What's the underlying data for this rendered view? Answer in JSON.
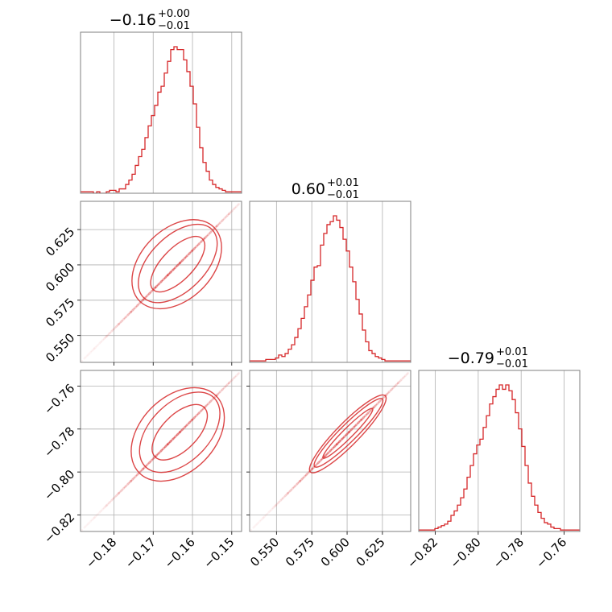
{
  "chart_data": {
    "type": "corner",
    "grid": true,
    "colors": {
      "line": "#d62728",
      "frame": "#7f7f7f",
      "grid": "#b0b0b0"
    },
    "parameters": [
      {
        "title": {
          "median": "−0.16",
          "plus": "+0.00",
          "minus": "−0.01"
        },
        "range": [
          -0.1885,
          -0.1475
        ],
        "ticks": [
          {
            "value": -0.18,
            "label": "−0.18"
          },
          {
            "value": -0.17,
            "label": "−0.17"
          },
          {
            "value": -0.16,
            "label": "−0.16"
          },
          {
            "value": -0.15,
            "label": "−0.15"
          }
        ],
        "histogram": {
          "start": -0.1885,
          "bin_width": 0.00082,
          "counts": [
            0.01,
            0.01,
            0.01,
            0.01,
            0.0,
            0.01,
            0.0,
            0.0,
            0.01,
            0.02,
            0.02,
            0.01,
            0.03,
            0.03,
            0.06,
            0.09,
            0.13,
            0.19,
            0.25,
            0.3,
            0.38,
            0.46,
            0.53,
            0.6,
            0.69,
            0.73,
            0.82,
            0.9,
            0.98,
            1.0,
            0.98,
            0.98,
            0.91,
            0.83,
            0.73,
            0.61,
            0.45,
            0.31,
            0.21,
            0.15,
            0.09,
            0.06,
            0.04,
            0.03,
            0.02,
            0.01,
            0.01,
            0.01,
            0.01,
            0.01
          ]
        }
      },
      {
        "title": {
          "median": "0.60",
          "plus": "+0.01",
          "minus": "−0.01"
        },
        "range": [
          0.531,
          0.645
        ],
        "ticks": [
          {
            "value": 0.55,
            "label": "0.550"
          },
          {
            "value": 0.575,
            "label": "0.575"
          },
          {
            "value": 0.6,
            "label": "0.600"
          },
          {
            "value": 0.625,
            "label": "0.625"
          }
        ],
        "histogram": {
          "start": 0.531,
          "bin_width": 0.00228,
          "counts": [
            0.01,
            0.01,
            0.01,
            0.01,
            0.01,
            0.02,
            0.02,
            0.02,
            0.03,
            0.05,
            0.04,
            0.06,
            0.09,
            0.12,
            0.17,
            0.23,
            0.3,
            0.38,
            0.46,
            0.56,
            0.65,
            0.66,
            0.8,
            0.88,
            0.94,
            0.96,
            1.0,
            0.97,
            0.92,
            0.84,
            0.76,
            0.65,
            0.55,
            0.43,
            0.33,
            0.22,
            0.14,
            0.08,
            0.06,
            0.04,
            0.03,
            0.02,
            0.01,
            0.01,
            0.01,
            0.01,
            0.01,
            0.01,
            0.01,
            0.01
          ]
        }
      },
      {
        "title": {
          "median": "−0.79",
          "plus": "+0.01",
          "minus": "−0.01"
        },
        "range": [
          -0.8277,
          -0.7527
        ],
        "ticks": [
          {
            "value": -0.82,
            "label": "−0.82"
          },
          {
            "value": -0.8,
            "label": "−0.80"
          },
          {
            "value": -0.78,
            "label": "−0.78"
          },
          {
            "value": -0.76,
            "label": "−0.76"
          }
        ],
        "histogram": {
          "start": -0.8277,
          "bin_width": 0.0015,
          "counts": [
            0.01,
            0.01,
            0.01,
            0.01,
            0.01,
            0.02,
            0.03,
            0.04,
            0.05,
            0.07,
            0.11,
            0.14,
            0.18,
            0.23,
            0.29,
            0.37,
            0.45,
            0.53,
            0.59,
            0.63,
            0.71,
            0.79,
            0.87,
            0.92,
            0.97,
            1.0,
            0.97,
            1.0,
            0.96,
            0.9,
            0.81,
            0.7,
            0.58,
            0.45,
            0.33,
            0.24,
            0.18,
            0.13,
            0.09,
            0.06,
            0.05,
            0.03,
            0.02,
            0.02,
            0.01,
            0.01,
            0.01,
            0.01,
            0.01,
            0.01
          ]
        }
      }
    ],
    "pairs": [
      {
        "x_param": 0,
        "y_param": 1,
        "correlation_line": {
          "x": [
            -0.1885,
            -0.1475
          ],
          "y": [
            0.531,
            0.645
          ]
        },
        "center": [
          -0.1633,
          0.601
        ],
        "contours": [
          {
            "a": [
              -0.1575,
              0.6185
            ],
            "b": [
              -0.17,
              0.5825
            ],
            "width": 0.004
          },
          {
            "a": [
              -0.155,
              0.625
            ],
            "b": [
              -0.1725,
              0.577
            ],
            "width": 0.007
          },
          {
            "a": [
              -0.1545,
              0.6265
            ],
            "b": [
              -0.1735,
              0.5745
            ],
            "width": 0.009
          }
        ]
      },
      {
        "x_param": 0,
        "y_param": 2,
        "correlation_line": {
          "x": [
            -0.1885,
            -0.1475
          ],
          "y": [
            -0.8277,
            -0.7527
          ]
        },
        "center": [
          -0.1633,
          -0.7818
        ],
        "contours": [
          {
            "a": [
              -0.157,
              -0.77
            ],
            "b": [
              -0.1695,
              -0.793
            ],
            "width": 0.0045
          },
          {
            "a": [
              -0.1545,
              -0.7655
            ],
            "b": [
              -0.172,
              -0.7975
            ],
            "width": 0.0075
          },
          {
            "a": [
              -0.154,
              -0.7645
            ],
            "b": [
              -0.1735,
              -0.8005
            ],
            "width": 0.0095
          }
        ]
      },
      {
        "x_param": 1,
        "y_param": 2,
        "correlation_line": {
          "x": [
            0.531,
            0.645
          ],
          "y": [
            -0.8277,
            -0.7527
          ]
        },
        "center": [
          0.601,
          -0.7818
        ],
        "contours": [
          {
            "a": [
              0.618,
              -0.7705
            ],
            "b": [
              0.583,
              -0.7935
            ],
            "width": 0.0035
          },
          {
            "a": [
              0.625,
              -0.766
            ],
            "b": [
              0.577,
              -0.7975
            ],
            "width": 0.006
          },
          {
            "a": [
              0.627,
              -0.7645
            ],
            "b": [
              0.574,
              -0.8
            ],
            "width": 0.008
          }
        ]
      }
    ]
  }
}
